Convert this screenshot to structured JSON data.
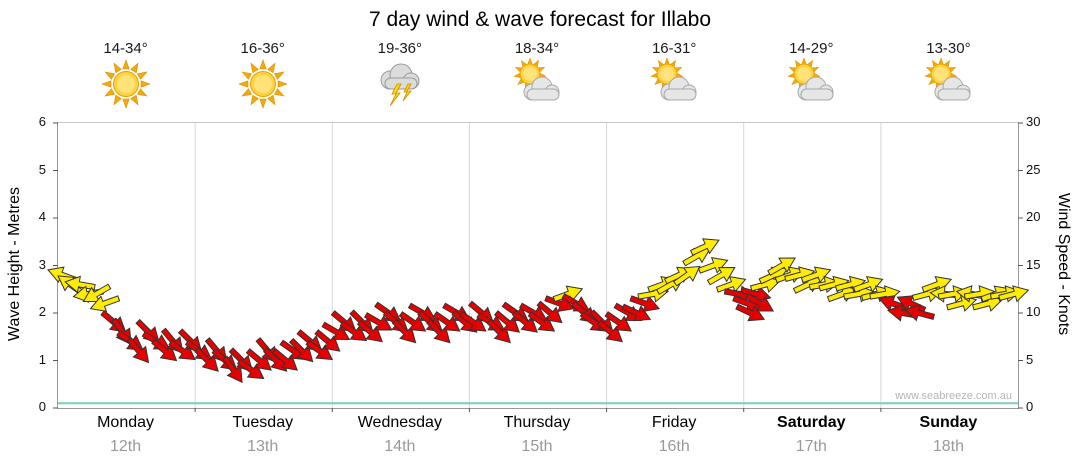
{
  "title": "7 day wind & wave forecast for Illabo",
  "watermark": "www.seabreeze.com.au",
  "forecast": {
    "columns": [
      {
        "temp_range": "14-34°",
        "icon": "sunny"
      },
      {
        "temp_range": "16-36°",
        "icon": "sunny"
      },
      {
        "temp_range": "19-36°",
        "icon": "thunderstorm"
      },
      {
        "temp_range": "18-34°",
        "icon": "partly-cloudy"
      },
      {
        "temp_range": "16-31°",
        "icon": "partly-cloudy"
      },
      {
        "temp_range": "14-29°",
        "icon": "partly-cloudy"
      },
      {
        "temp_range": "13-30°",
        "icon": "partly-cloudy"
      }
    ]
  },
  "chart_data": {
    "type": "scatter",
    "title": "7 day wind & wave forecast for Illabo",
    "left_axis": {
      "label": "Wave Height - Metres",
      "min": 0,
      "max": 6,
      "ticks": [
        0,
        1,
        2,
        3,
        4,
        5,
        6
      ]
    },
    "right_axis": {
      "label": "Wind Speed - Knots",
      "min": 0,
      "max": 30,
      "ticks": [
        0,
        5,
        10,
        15,
        20,
        25,
        30
      ]
    },
    "x_days": [
      {
        "name": "Monday",
        "date": "12th",
        "bold": false
      },
      {
        "name": "Tuesday",
        "date": "13th",
        "bold": false
      },
      {
        "name": "Wednesday",
        "date": "14th",
        "bold": false
      },
      {
        "name": "Thursday",
        "date": "15th",
        "bold": false
      },
      {
        "name": "Friday",
        "date": "16th",
        "bold": false
      },
      {
        "name": "Saturday",
        "date": "17th",
        "bold": true
      },
      {
        "name": "Sunday",
        "date": "18th",
        "bold": true
      }
    ],
    "grid": "vertical-day-lines",
    "legend": "none",
    "wave_height_series": {
      "metres_flat": 0.1,
      "color": "#7fcfae"
    },
    "wind_series": {
      "point_format": [
        "day_offset",
        "knots",
        "direction_deg",
        "color_code"
      ],
      "color_codes": {
        "y": "#ffec00",
        "r": "#e60000"
      },
      "points": [
        [
          0.0,
          14,
          200,
          "y"
        ],
        [
          0.06,
          13,
          215,
          "y"
        ],
        [
          0.13,
          13,
          190,
          "y"
        ],
        [
          0.19,
          12,
          170,
          "y"
        ],
        [
          0.25,
          12,
          150,
          "y"
        ],
        [
          0.31,
          11,
          160,
          "y"
        ],
        [
          0.38,
          9,
          40,
          "r"
        ],
        [
          0.44,
          8,
          55,
          "r"
        ],
        [
          0.5,
          7,
          35,
          "r"
        ],
        [
          0.56,
          6,
          50,
          "r"
        ],
        [
          0.63,
          8,
          45,
          "r"
        ],
        [
          0.69,
          7,
          30,
          "r"
        ],
        [
          0.75,
          6,
          40,
          "r"
        ],
        [
          0.81,
          7,
          50,
          "r"
        ],
        [
          0.88,
          6,
          35,
          "r"
        ],
        [
          0.94,
          7,
          45,
          "r"
        ],
        [
          1.0,
          6,
          35,
          "r"
        ],
        [
          1.06,
          5,
          45,
          "r"
        ],
        [
          1.13,
          6,
          50,
          "r"
        ],
        [
          1.19,
          5,
          40,
          "r"
        ],
        [
          1.25,
          4,
          55,
          "r"
        ],
        [
          1.31,
          5,
          45,
          "r"
        ],
        [
          1.38,
          4,
          35,
          "r"
        ],
        [
          1.44,
          5,
          40,
          "r"
        ],
        [
          1.5,
          6,
          50,
          "r"
        ],
        [
          1.56,
          5,
          45,
          "r"
        ],
        [
          1.63,
          5,
          40,
          "r"
        ],
        [
          1.69,
          6,
          35,
          "r"
        ],
        [
          1.75,
          6,
          45,
          "r"
        ],
        [
          1.81,
          7,
          40,
          "r"
        ],
        [
          1.88,
          6,
          35,
          "r"
        ],
        [
          1.94,
          7,
          40,
          "r"
        ],
        [
          2.0,
          8,
          30,
          "r"
        ],
        [
          2.06,
          9,
          40,
          "r"
        ],
        [
          2.13,
          8,
          35,
          "r"
        ],
        [
          2.19,
          9,
          45,
          "r"
        ],
        [
          2.25,
          8,
          40,
          "r"
        ],
        [
          2.31,
          9,
          30,
          "r"
        ],
        [
          2.38,
          10,
          35,
          "r"
        ],
        [
          2.44,
          9,
          40,
          "r"
        ],
        [
          2.5,
          8,
          45,
          "r"
        ],
        [
          2.56,
          9,
          35,
          "r"
        ],
        [
          2.63,
          10,
          30,
          "r"
        ],
        [
          2.69,
          9,
          40,
          "r"
        ],
        [
          2.75,
          8,
          45,
          "r"
        ],
        [
          2.81,
          9,
          35,
          "r"
        ],
        [
          2.88,
          10,
          30,
          "r"
        ],
        [
          2.94,
          9,
          40,
          "r"
        ],
        [
          3.0,
          9,
          35,
          "r"
        ],
        [
          3.06,
          10,
          40,
          "r"
        ],
        [
          3.13,
          9,
          30,
          "r"
        ],
        [
          3.19,
          8,
          45,
          "r"
        ],
        [
          3.25,
          9,
          40,
          "r"
        ],
        [
          3.31,
          10,
          35,
          "r"
        ],
        [
          3.38,
          9,
          40,
          "r"
        ],
        [
          3.44,
          10,
          30,
          "r"
        ],
        [
          3.5,
          9,
          35,
          "r"
        ],
        [
          3.56,
          10,
          40,
          "r"
        ],
        [
          3.63,
          11,
          20,
          "r"
        ],
        [
          3.69,
          12,
          -20,
          "y"
        ],
        [
          3.75,
          11,
          30,
          "r"
        ],
        [
          3.81,
          10,
          40,
          "r"
        ],
        [
          3.88,
          9,
          35,
          "r"
        ],
        [
          3.94,
          9,
          45,
          "r"
        ],
        [
          4.0,
          8,
          40,
          "r"
        ],
        [
          4.06,
          9,
          35,
          "r"
        ],
        [
          4.13,
          10,
          30,
          "r"
        ],
        [
          4.19,
          10,
          25,
          "r"
        ],
        [
          4.25,
          11,
          20,
          "r"
        ],
        [
          4.31,
          12,
          -10,
          "y"
        ],
        [
          4.38,
          13,
          -20,
          "y"
        ],
        [
          4.44,
          13,
          -30,
          "y"
        ],
        [
          4.5,
          14,
          -25,
          "y"
        ],
        [
          4.56,
          14,
          -35,
          "y"
        ],
        [
          4.63,
          16,
          -30,
          "y"
        ],
        [
          4.69,
          17,
          -25,
          "y"
        ],
        [
          4.75,
          15,
          -20,
          "y"
        ],
        [
          4.81,
          14,
          -30,
          "y"
        ],
        [
          4.88,
          13,
          -20,
          "y"
        ],
        [
          4.94,
          12,
          10,
          "r"
        ],
        [
          5.0,
          11,
          20,
          "r"
        ],
        [
          5.02,
          10,
          25,
          "r"
        ],
        [
          5.06,
          12,
          15,
          "r"
        ],
        [
          5.09,
          11,
          30,
          "r"
        ],
        [
          5.13,
          13,
          -15,
          "y"
        ],
        [
          5.19,
          14,
          -25,
          "y"
        ],
        [
          5.25,
          15,
          -30,
          "y"
        ],
        [
          5.31,
          14,
          -20,
          "y"
        ],
        [
          5.38,
          14,
          -15,
          "y"
        ],
        [
          5.44,
          13,
          -25,
          "y"
        ],
        [
          5.5,
          14,
          -20,
          "y"
        ],
        [
          5.56,
          13,
          -10,
          "y"
        ],
        [
          5.63,
          13,
          -15,
          "y"
        ],
        [
          5.69,
          12,
          -20,
          "y"
        ],
        [
          5.75,
          13,
          -15,
          "y"
        ],
        [
          5.81,
          12,
          -10,
          "y"
        ],
        [
          5.88,
          13,
          -20,
          "y"
        ],
        [
          5.94,
          12,
          -15,
          "y"
        ],
        [
          6.0,
          12,
          -10,
          "y"
        ],
        [
          6.06,
          11,
          200,
          "r"
        ],
        [
          6.13,
          10,
          190,
          "r"
        ],
        [
          6.19,
          11,
          205,
          "r"
        ],
        [
          6.25,
          10,
          195,
          "r"
        ],
        [
          6.31,
          12,
          -15,
          "y"
        ],
        [
          6.38,
          13,
          -20,
          "y"
        ],
        [
          6.44,
          12,
          185,
          "y"
        ],
        [
          6.5,
          12,
          -10,
          "y"
        ],
        [
          6.56,
          11,
          -15,
          "y"
        ],
        [
          6.63,
          12,
          190,
          "y"
        ],
        [
          6.69,
          12,
          -10,
          "y"
        ],
        [
          6.75,
          11,
          -15,
          "y"
        ],
        [
          6.81,
          12,
          -20,
          "y"
        ],
        [
          6.88,
          12,
          -10,
          "y"
        ],
        [
          6.94,
          12,
          -15,
          "y"
        ]
      ]
    }
  }
}
